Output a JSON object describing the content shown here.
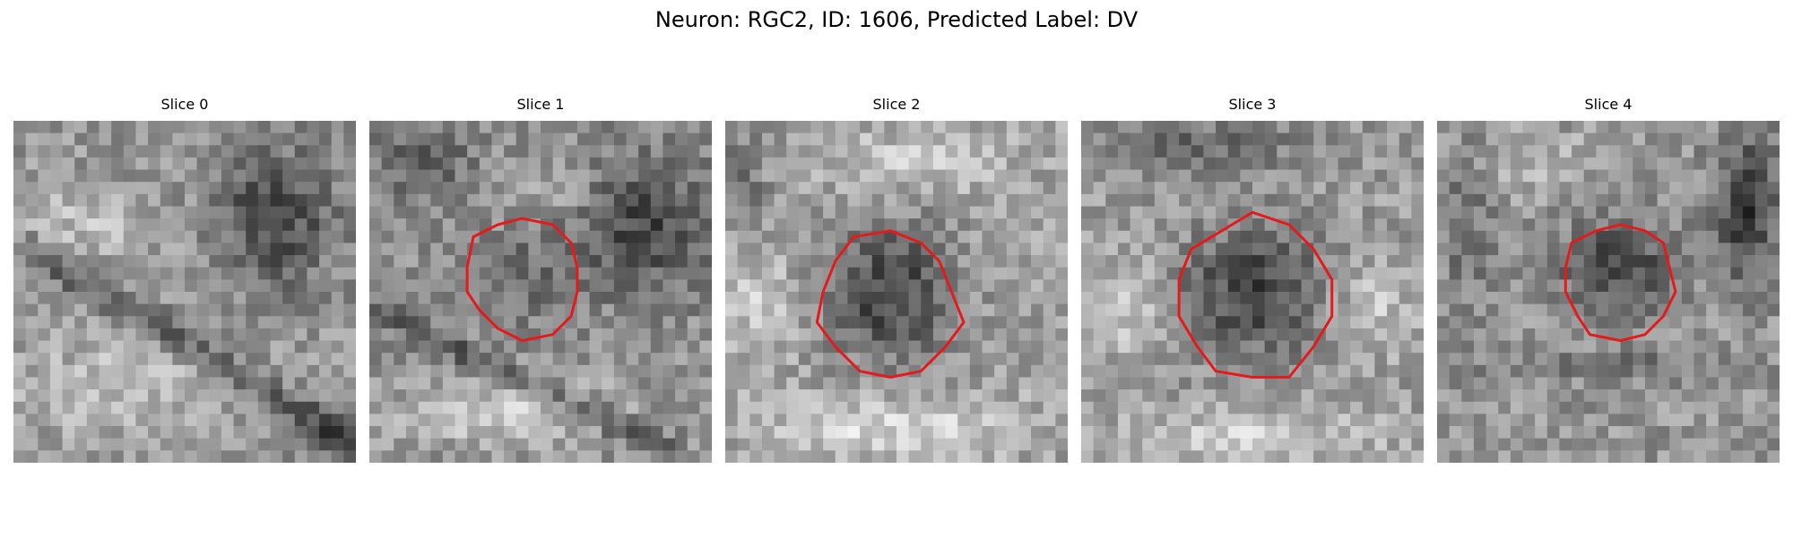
{
  "figure": {
    "title": "Neuron: RGC2, ID: 1606, Predicted Label: DV",
    "outline_color": "#e41a1c"
  },
  "slices": [
    {
      "label": "Slice 0",
      "has_outline": false
    },
    {
      "label": "Slice 1",
      "has_outline": true
    },
    {
      "label": "Slice 2",
      "has_outline": true
    },
    {
      "label": "Slice 3",
      "has_outline": true
    },
    {
      "label": "Slice 4",
      "has_outline": true
    }
  ]
}
